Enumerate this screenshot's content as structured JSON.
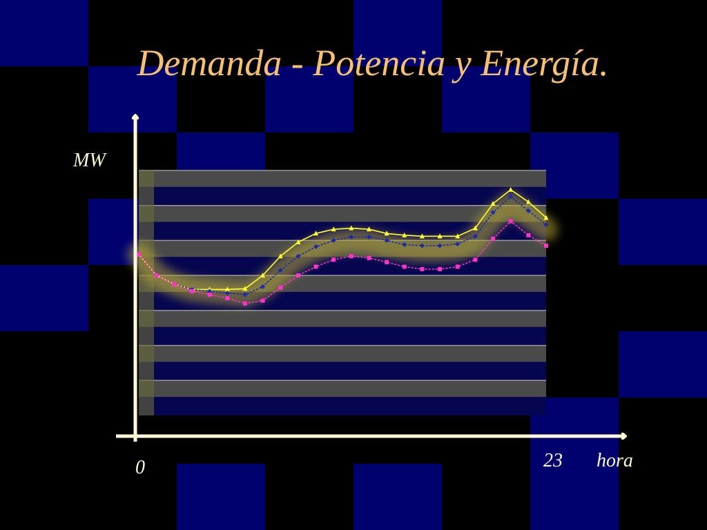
{
  "slide": {
    "title": "Demanda - Potencia y Energía.",
    "colors": {
      "background": "#000000",
      "check_blue": "#00006E",
      "title": "#F5C074",
      "axis": "#FFF8D6"
    }
  },
  "chart_data": {
    "type": "line",
    "title": "",
    "xlabel": "hora",
    "ylabel": "MW",
    "x_tick_labels": [
      "0",
      "23"
    ],
    "x": [
      0,
      1,
      2,
      3,
      4,
      5,
      6,
      7,
      8,
      9,
      10,
      11,
      12,
      13,
      14,
      15,
      16,
      17,
      18,
      19,
      20,
      21,
      22,
      23
    ],
    "xlim": [
      0,
      23
    ],
    "ylim": [
      0,
      7
    ],
    "grid": true,
    "legend": "none",
    "series": [
      {
        "color": "#FFFF33",
        "marker": "triangle",
        "values": [
          4.6,
          4.0,
          3.75,
          3.6,
          3.6,
          3.6,
          3.62,
          4.0,
          4.55,
          4.95,
          5.2,
          5.32,
          5.35,
          5.32,
          5.2,
          5.15,
          5.12,
          5.12,
          5.12,
          5.35,
          6.05,
          6.45,
          6.1,
          5.65
        ]
      },
      {
        "color": "#1A2AA8",
        "marker": "diamond",
        "values": [
          4.6,
          4.0,
          3.75,
          3.6,
          3.55,
          3.5,
          3.45,
          3.68,
          4.15,
          4.55,
          4.82,
          5.0,
          5.1,
          5.1,
          5.0,
          4.88,
          4.85,
          4.85,
          4.9,
          5.12,
          5.8,
          6.25,
          5.85,
          5.45
        ]
      },
      {
        "color": "#FF33CC",
        "marker": "square",
        "values": [
          4.6,
          4.0,
          3.75,
          3.55,
          3.45,
          3.35,
          3.2,
          3.28,
          3.65,
          4.0,
          4.25,
          4.45,
          4.55,
          4.5,
          4.38,
          4.25,
          4.18,
          4.18,
          4.25,
          4.45,
          5.05,
          5.55,
          5.15,
          4.85
        ]
      }
    ]
  }
}
